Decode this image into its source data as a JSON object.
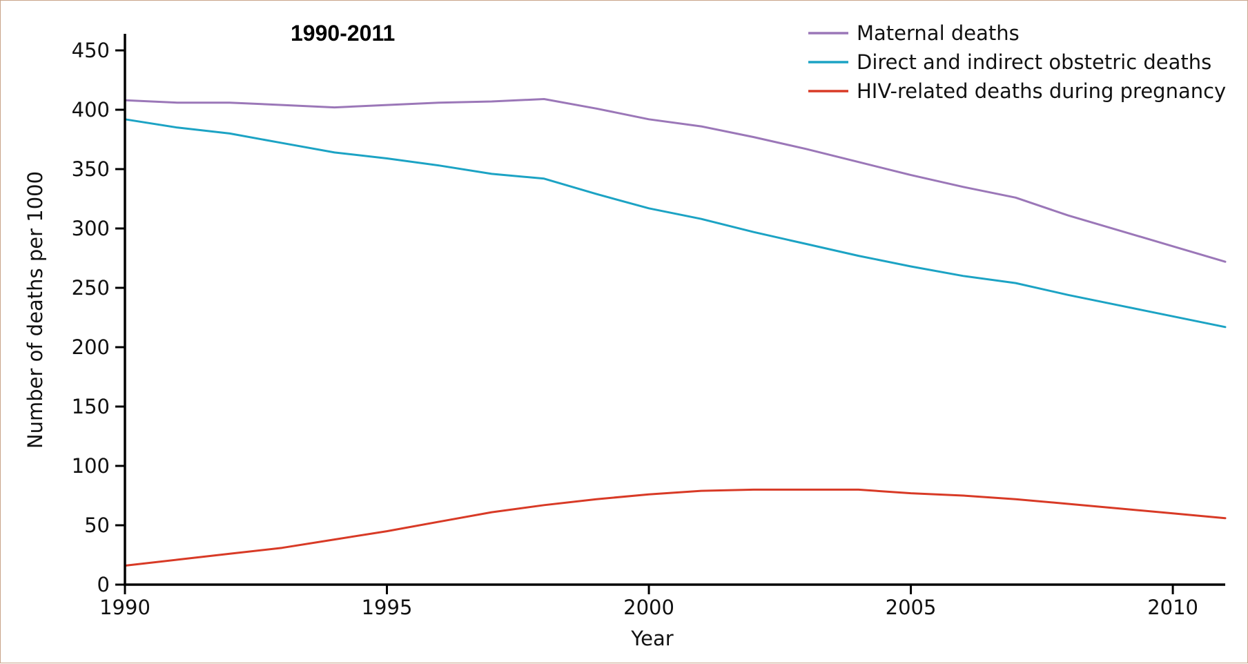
{
  "chart_data": {
    "type": "line",
    "title": "1990-2011",
    "xlabel": "Year",
    "ylabel": "Number of deaths per 1000",
    "xlim": [
      1990,
      2011
    ],
    "ylim": [
      0,
      450
    ],
    "x_ticks": [
      1990,
      1995,
      2000,
      2005,
      2010
    ],
    "x_tick_labels": [
      "1990",
      "1995",
      "2000",
      "2005",
      "2010"
    ],
    "y_ticks": [
      0,
      50,
      100,
      150,
      200,
      250,
      300,
      350,
      400,
      450
    ],
    "y_tick_labels": [
      "0",
      "50",
      "100",
      "150",
      "200",
      "250",
      "300",
      "350",
      "400",
      "450"
    ],
    "grid": false,
    "legend_position": "top-right",
    "x": [
      1990,
      1991,
      1992,
      1993,
      1994,
      1995,
      1996,
      1997,
      1998,
      1999,
      2000,
      2001,
      2002,
      2003,
      2004,
      2005,
      2006,
      2007,
      2008,
      2009,
      2010,
      2011
    ],
    "series": [
      {
        "name": "Maternal deaths",
        "color": "#9b77b8",
        "values": [
          408,
          406,
          406,
          404,
          402,
          404,
          406,
          407,
          409,
          401,
          392,
          386,
          377,
          367,
          356,
          345,
          335,
          326,
          311,
          298,
          285,
          272
        ]
      },
      {
        "name": "Direct and indirect obstetric deaths",
        "color": "#1ca3c4",
        "values": [
          392,
          385,
          380,
          372,
          364,
          359,
          353,
          346,
          342,
          329,
          317,
          308,
          297,
          287,
          277,
          268,
          260,
          254,
          244,
          235,
          226,
          217
        ]
      },
      {
        "name": "HIV-related deaths during pregnancy",
        "color": "#d83a26",
        "values": [
          16,
          21,
          26,
          31,
          38,
          45,
          53,
          61,
          67,
          72,
          76,
          79,
          80,
          80,
          80,
          77,
          75,
          72,
          68,
          64,
          60,
          56
        ]
      }
    ]
  }
}
